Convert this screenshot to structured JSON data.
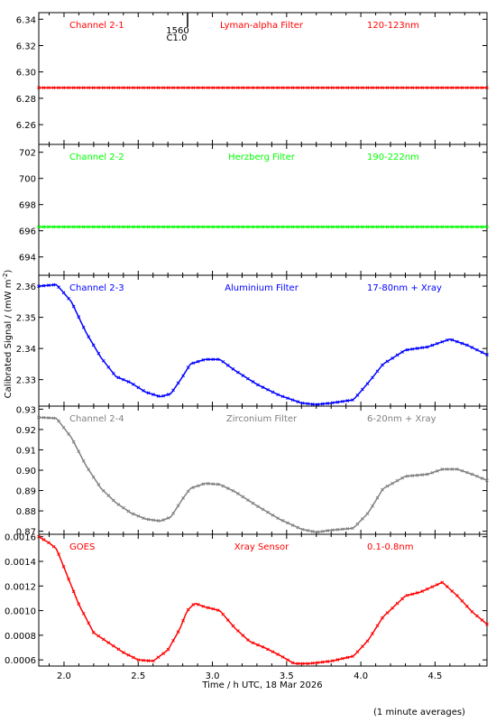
{
  "chart_data": {
    "type": "line",
    "ylabel": "Calibrated Signal / (mW m",
    "ylabel_sup": "-2",
    "ylabel_end": ")",
    "xlabel": "Time / h UTC, 18 Mar 2026",
    "footnote": "(1 minute averages)",
    "xlim": [
      1.83,
      4.85
    ],
    "xticks": [
      2.0,
      2.5,
      3.0,
      3.5,
      4.0,
      4.5
    ],
    "xtick_labels": [
      "2.0",
      "2.5",
      "3.0",
      "3.5",
      "4.0",
      "4.5"
    ],
    "event_marker": {
      "x": 2.85,
      "label_time": "1560",
      "label_class": "C1.0"
    },
    "panels": [
      {
        "channel": "Channel 2-1",
        "filter": "Lyman-alpha Filter",
        "band": "120-123nm",
        "color": "#ff0000",
        "ylim": [
          6.245,
          6.345
        ],
        "yticks": [
          6.26,
          6.28,
          6.3,
          6.32,
          6.34
        ],
        "ytick_labels": [
          "6.26",
          "6.28",
          "6.30",
          "6.32",
          "6.34"
        ],
        "keypoints": [
          [
            1.83,
            6.288
          ],
          [
            4.85,
            6.288
          ]
        ]
      },
      {
        "channel": "Channel 2-2",
        "filter": "Herzberg Filter",
        "band": "190-222nm",
        "color": "#00ff00",
        "ylim": [
          692.6,
          702.6
        ],
        "yticks": [
          694,
          696,
          698,
          700,
          702
        ],
        "ytick_labels": [
          "694",
          "696",
          "698",
          "700",
          "702"
        ],
        "keypoints": [
          [
            1.83,
            696.3
          ],
          [
            4.85,
            696.3
          ]
        ]
      },
      {
        "channel": "Channel 2-3",
        "filter": "Aluminium Filter",
        "band": "17-80nm + Xray",
        "color": "#0000ff",
        "ylim": [
          2.3215,
          2.3635
        ],
        "yticks": [
          2.33,
          2.34,
          2.35,
          2.36
        ],
        "ytick_labels": [
          "2.33",
          "2.34",
          "2.35",
          "2.36"
        ],
        "keypoints": [
          [
            1.83,
            2.36
          ],
          [
            1.95,
            2.3605
          ],
          [
            2.05,
            2.355
          ],
          [
            2.15,
            2.345
          ],
          [
            2.25,
            2.337
          ],
          [
            2.35,
            2.331
          ],
          [
            2.45,
            2.329
          ],
          [
            2.55,
            2.326
          ],
          [
            2.65,
            2.3245
          ],
          [
            2.72,
            2.3255
          ],
          [
            2.8,
            2.331
          ],
          [
            2.85,
            2.335
          ],
          [
            2.95,
            2.3365
          ],
          [
            3.05,
            2.3365
          ],
          [
            3.15,
            2.333
          ],
          [
            3.3,
            2.3285
          ],
          [
            3.45,
            2.325
          ],
          [
            3.6,
            2.3225
          ],
          [
            3.7,
            2.322
          ],
          [
            3.8,
            2.3225
          ],
          [
            3.95,
            2.3235
          ],
          [
            4.05,
            2.329
          ],
          [
            4.15,
            2.335
          ],
          [
            4.3,
            2.3395
          ],
          [
            4.45,
            2.3405
          ],
          [
            4.6,
            2.343
          ],
          [
            4.72,
            2.341
          ],
          [
            4.85,
            2.338
          ]
        ]
      },
      {
        "channel": "Channel 2-4",
        "filter": "Zirconium Filter",
        "band": "6-20nm + Xray",
        "color": "#808080",
        "ylim": [
          0.8685,
          0.9315
        ],
        "yticks": [
          0.87,
          0.88,
          0.89,
          0.9,
          0.91,
          0.92,
          0.93
        ],
        "ytick_labels": [
          "0.87",
          "0.88",
          "0.89",
          "0.90",
          "0.91",
          "0.92",
          "0.93"
        ],
        "keypoints": [
          [
            1.83,
            0.926
          ],
          [
            1.95,
            0.9255
          ],
          [
            2.05,
            0.916
          ],
          [
            2.15,
            0.902
          ],
          [
            2.25,
            0.891
          ],
          [
            2.35,
            0.884
          ],
          [
            2.45,
            0.879
          ],
          [
            2.55,
            0.876
          ],
          [
            2.65,
            0.875
          ],
          [
            2.72,
            0.877
          ],
          [
            2.8,
            0.886
          ],
          [
            2.85,
            0.891
          ],
          [
            2.95,
            0.8935
          ],
          [
            3.05,
            0.893
          ],
          [
            3.15,
            0.8895
          ],
          [
            3.3,
            0.8825
          ],
          [
            3.45,
            0.876
          ],
          [
            3.6,
            0.871
          ],
          [
            3.7,
            0.8695
          ],
          [
            3.8,
            0.8705
          ],
          [
            3.95,
            0.8715
          ],
          [
            4.05,
            0.879
          ],
          [
            4.15,
            0.891
          ],
          [
            4.3,
            0.897
          ],
          [
            4.45,
            0.898
          ],
          [
            4.55,
            0.9005
          ],
          [
            4.65,
            0.9005
          ],
          [
            4.75,
            0.898
          ],
          [
            4.85,
            0.895
          ]
        ]
      },
      {
        "channel": "GOES",
        "filter": "Xray Sensor",
        "band": "0.1-0.8nm",
        "color": "#ff0000",
        "ylim": [
          0.00055,
          0.00162
        ],
        "yticks": [
          0.0006,
          0.0008,
          0.001,
          0.0012,
          0.0014,
          0.0016
        ],
        "ytick_labels": [
          "0.0006",
          "0.0008",
          "0.0010",
          "0.0012",
          "0.0014",
          "0.0016"
        ],
        "keypoints": [
          [
            1.83,
            0.0016
          ],
          [
            1.9,
            0.00155
          ],
          [
            1.95,
            0.0015
          ],
          [
            2.0,
            0.00135
          ],
          [
            2.1,
            0.00105
          ],
          [
            2.2,
            0.00082
          ],
          [
            2.3,
            0.00074
          ],
          [
            2.4,
            0.00066
          ],
          [
            2.5,
            0.0006
          ],
          [
            2.6,
            0.00059
          ],
          [
            2.7,
            0.00068
          ],
          [
            2.78,
            0.00085
          ],
          [
            2.83,
            0.001
          ],
          [
            2.88,
            0.00106
          ],
          [
            2.95,
            0.00103
          ],
          [
            3.05,
            0.001
          ],
          [
            3.15,
            0.00086
          ],
          [
            3.25,
            0.00075
          ],
          [
            3.35,
            0.0007
          ],
          [
            3.45,
            0.00064
          ],
          [
            3.55,
            0.00057
          ],
          [
            3.65,
            0.00057
          ],
          [
            3.8,
            0.00059
          ],
          [
            3.95,
            0.00063
          ],
          [
            4.05,
            0.00076
          ],
          [
            4.15,
            0.00095
          ],
          [
            4.3,
            0.00112
          ],
          [
            4.4,
            0.00115
          ],
          [
            4.55,
            0.00123
          ],
          [
            4.65,
            0.00112
          ],
          [
            4.75,
            0.00099
          ],
          [
            4.85,
            0.00089
          ]
        ]
      }
    ]
  }
}
